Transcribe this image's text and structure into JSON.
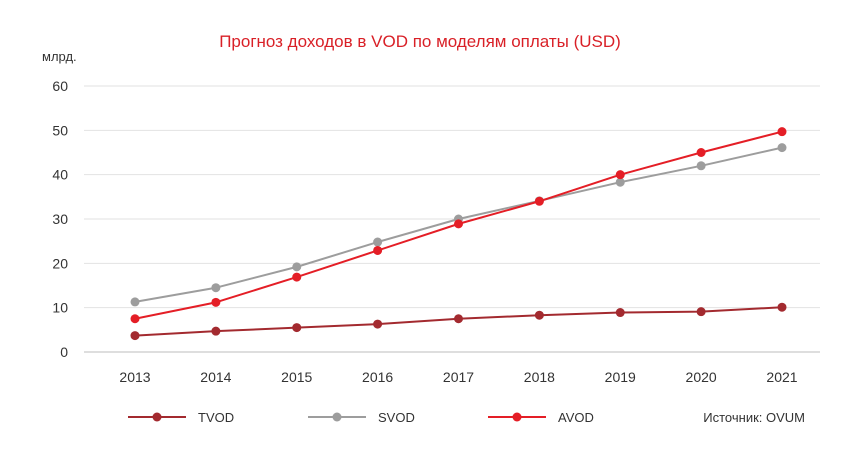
{
  "chart_data": {
    "type": "line",
    "title": "Прогноз доходов в VOD по моделям оплаты (USD)",
    "ylabel": "млрд.",
    "xlabel": "",
    "categories": [
      "2013",
      "2014",
      "2015",
      "2016",
      "2017",
      "2018",
      "2019",
      "2020",
      "2021"
    ],
    "ylim": [
      0,
      60
    ],
    "yticks": [
      0,
      10,
      20,
      30,
      40,
      50,
      60
    ],
    "grid": true,
    "legend_position": "bottom",
    "series": [
      {
        "name": "TVOD",
        "color": "#a32a2f",
        "values": [
          3.7,
          4.7,
          5.5,
          6.3,
          7.5,
          8.3,
          8.9,
          9.1,
          10.1
        ]
      },
      {
        "name": "SVOD",
        "color": "#9d9d9d",
        "values": [
          11.3,
          14.5,
          19.2,
          24.8,
          30.0,
          34.1,
          38.3,
          42.0,
          46.1
        ]
      },
      {
        "name": "AVOD",
        "color": "#e41e26",
        "values": [
          7.5,
          11.2,
          16.9,
          22.9,
          28.9,
          34.0,
          40.0,
          45.0,
          49.7
        ]
      }
    ],
    "source": "Источник: OVUM"
  }
}
